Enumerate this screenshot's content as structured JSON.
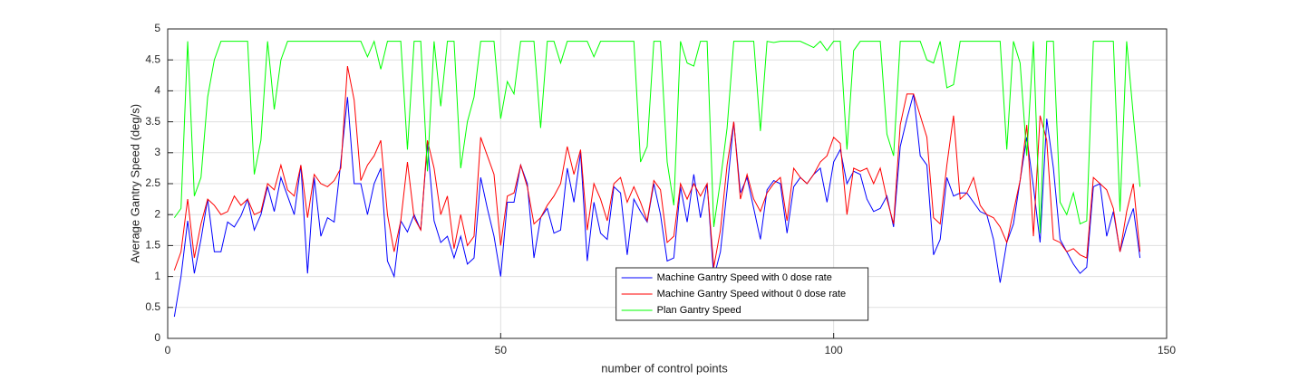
{
  "chart_data": {
    "type": "line",
    "xlabel": "number of control points",
    "ylabel": "Average Gantry Speed (deg/s)",
    "x": [
      1,
      2,
      3,
      4,
      5,
      6,
      7,
      8,
      9,
      10,
      11,
      12,
      13,
      14,
      15,
      16,
      17,
      18,
      19,
      20,
      21,
      22,
      23,
      24,
      25,
      26,
      27,
      28,
      29,
      30,
      31,
      32,
      33,
      34,
      35,
      36,
      37,
      38,
      39,
      40,
      41,
      42,
      43,
      44,
      45,
      46,
      47,
      48,
      49,
      50,
      51,
      52,
      53,
      54,
      55,
      56,
      57,
      58,
      59,
      60,
      61,
      62,
      63,
      64,
      65,
      66,
      67,
      68,
      69,
      70,
      71,
      72,
      73,
      74,
      75,
      76,
      77,
      78,
      79,
      80,
      81,
      82,
      83,
      84,
      85,
      86,
      87,
      88,
      89,
      90,
      91,
      92,
      93,
      94,
      95,
      96,
      97,
      98,
      99,
      100,
      101,
      102,
      103,
      104,
      105,
      106,
      107,
      108,
      109,
      110,
      111,
      112,
      113,
      114,
      115,
      116,
      117,
      118,
      119,
      120,
      121,
      122,
      123,
      124,
      125,
      126,
      127,
      128,
      129,
      130,
      131,
      132,
      133,
      134,
      135,
      136,
      137,
      138,
      139,
      140,
      141,
      142,
      143,
      144,
      145,
      146
    ],
    "series": [
      {
        "name": "Machine Gantry Speed with 0 dose rate",
        "color": "#0000ff",
        "values": [
          0.35,
          1.0,
          1.9,
          1.05,
          1.6,
          2.25,
          1.4,
          1.4,
          1.88,
          1.8,
          1.98,
          2.25,
          1.75,
          2.0,
          2.45,
          2.05,
          2.6,
          2.3,
          2.0,
          2.8,
          1.05,
          2.6,
          1.65,
          1.95,
          1.88,
          2.85,
          3.9,
          2.5,
          2.5,
          2.0,
          2.5,
          2.75,
          1.25,
          1.0,
          1.9,
          1.72,
          2.0,
          1.75,
          3.15,
          1.9,
          1.55,
          1.65,
          1.3,
          1.65,
          1.2,
          1.3,
          2.6,
          2.1,
          1.65,
          1.0,
          2.2,
          2.2,
          2.8,
          2.5,
          1.3,
          1.95,
          2.1,
          1.7,
          1.75,
          2.75,
          2.2,
          3.0,
          1.25,
          2.2,
          1.7,
          1.6,
          2.45,
          2.35,
          1.35,
          2.25,
          2.05,
          1.88,
          2.5,
          2.0,
          1.25,
          1.3,
          2.45,
          1.88,
          2.65,
          1.95,
          2.5,
          0.98,
          1.4,
          2.4,
          3.5,
          2.35,
          2.6,
          2.1,
          1.6,
          2.4,
          2.55,
          2.5,
          1.7,
          2.45,
          2.6,
          2.5,
          2.65,
          2.75,
          2.2,
          2.85,
          3.05,
          2.5,
          2.7,
          2.65,
          2.25,
          2.05,
          2.1,
          2.3,
          1.8,
          3.1,
          3.55,
          3.95,
          2.95,
          2.8,
          1.35,
          1.6,
          2.6,
          2.3,
          2.35,
          2.35,
          2.2,
          2.05,
          2.0,
          1.6,
          0.9,
          1.55,
          1.85,
          2.55,
          3.25,
          2.45,
          1.55,
          3.55,
          2.75,
          1.6,
          1.4,
          1.2,
          1.05,
          1.15,
          2.45,
          2.5,
          1.65,
          2.05,
          1.4,
          1.8,
          2.1,
          1.3
        ]
      },
      {
        "name": "Machine Gantry Speed without 0 dose rate",
        "color": "#ff0000",
        "values": [
          1.1,
          1.4,
          2.25,
          1.3,
          1.85,
          2.25,
          2.15,
          2.0,
          2.05,
          2.3,
          2.15,
          2.25,
          2.0,
          2.05,
          2.5,
          2.4,
          2.8,
          2.4,
          2.3,
          2.8,
          1.95,
          2.65,
          2.5,
          2.45,
          2.55,
          2.75,
          4.4,
          3.85,
          2.55,
          2.8,
          2.95,
          3.2,
          2.0,
          1.4,
          1.9,
          2.85,
          1.95,
          1.75,
          3.2,
          2.75,
          2.0,
          2.3,
          1.45,
          2.0,
          1.5,
          1.65,
          3.25,
          2.95,
          2.65,
          1.5,
          2.3,
          2.35,
          2.8,
          2.45,
          1.85,
          1.95,
          2.15,
          2.3,
          2.5,
          3.1,
          2.65,
          3.05,
          1.75,
          2.5,
          2.25,
          1.9,
          2.5,
          2.6,
          2.2,
          2.45,
          2.2,
          1.9,
          2.55,
          2.4,
          1.55,
          1.65,
          2.5,
          2.25,
          2.5,
          2.3,
          2.5,
          1.15,
          1.75,
          2.8,
          3.5,
          2.25,
          2.65,
          2.25,
          2.05,
          2.35,
          2.5,
          2.6,
          1.9,
          2.75,
          2.6,
          2.5,
          2.65,
          2.85,
          2.95,
          3.25,
          3.15,
          2.0,
          2.75,
          2.7,
          2.75,
          2.5,
          2.75,
          2.25,
          1.85,
          3.45,
          3.95,
          3.95,
          3.6,
          3.25,
          1.95,
          1.85,
          2.8,
          3.6,
          2.25,
          2.35,
          2.6,
          2.15,
          2.0,
          1.95,
          1.8,
          1.55,
          2.05,
          2.55,
          3.45,
          1.65,
          3.6,
          3.2,
          1.6,
          1.55,
          1.4,
          1.45,
          1.35,
          1.3,
          2.6,
          2.5,
          2.4,
          2.1,
          1.4,
          2.05,
          2.5,
          1.4
        ]
      },
      {
        "name": "Plan Gantry Speed",
        "color": "#00ff00",
        "values": [
          1.95,
          2.1,
          4.8,
          2.3,
          2.6,
          3.9,
          4.5,
          4.8,
          4.8,
          4.8,
          4.8,
          4.8,
          2.65,
          3.2,
          4.8,
          3.7,
          4.5,
          4.8,
          4.8,
          4.8,
          4.8,
          4.8,
          4.8,
          4.8,
          4.8,
          4.8,
          4.8,
          4.8,
          4.8,
          4.55,
          4.8,
          4.35,
          4.8,
          4.8,
          4.8,
          3.05,
          4.8,
          4.8,
          2.7,
          4.8,
          3.75,
          4.8,
          4.8,
          2.75,
          3.5,
          3.9,
          4.8,
          4.8,
          4.8,
          3.55,
          4.15,
          3.95,
          4.8,
          4.8,
          4.8,
          3.4,
          4.8,
          4.8,
          4.45,
          4.8,
          4.8,
          4.8,
          4.8,
          4.55,
          4.8,
          4.8,
          4.8,
          4.8,
          4.8,
          4.8,
          2.85,
          3.1,
          4.8,
          4.8,
          2.85,
          2.15,
          4.8,
          4.45,
          4.4,
          4.8,
          4.8,
          1.8,
          2.55,
          3.4,
          4.8,
          4.8,
          4.8,
          4.8,
          3.35,
          4.8,
          4.78,
          4.8,
          4.8,
          4.8,
          4.8,
          4.75,
          4.7,
          4.8,
          4.65,
          4.8,
          4.8,
          3.05,
          4.65,
          4.8,
          4.8,
          4.8,
          4.8,
          3.3,
          2.95,
          4.8,
          4.8,
          4.8,
          4.8,
          4.5,
          4.45,
          4.8,
          4.05,
          4.1,
          4.8,
          4.8,
          4.8,
          4.8,
          4.8,
          4.8,
          4.8,
          3.05,
          4.8,
          4.45,
          2.95,
          4.8,
          1.7,
          4.8,
          4.8,
          2.2,
          2.0,
          2.35,
          1.85,
          1.9,
          4.8,
          4.8,
          4.8,
          4.8,
          2.05,
          4.8,
          3.6,
          2.45
        ]
      }
    ],
    "xlim": [
      0,
      150
    ],
    "xticks": [
      0,
      50,
      100,
      150
    ],
    "ylim": [
      0,
      5
    ],
    "yticks": [
      0,
      0.5,
      1,
      1.5,
      2,
      2.5,
      3,
      3.5,
      4,
      4.5,
      5
    ],
    "grid": true,
    "legend_loc": "south"
  }
}
